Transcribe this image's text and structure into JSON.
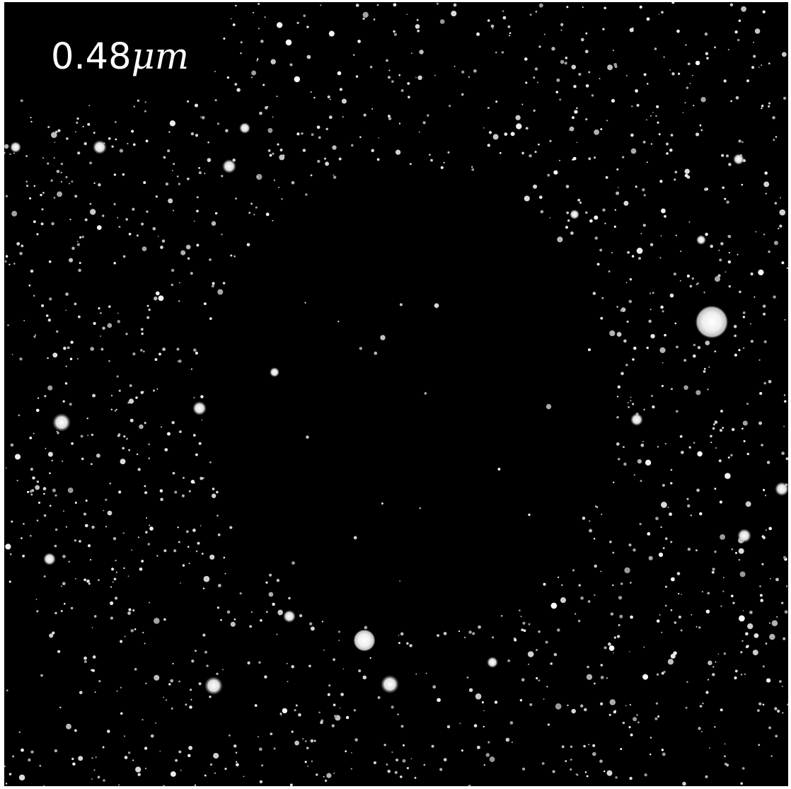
{
  "panel": {
    "wavelength_value": "0.48",
    "wavelength_unit": "μm",
    "background_color": "#000000",
    "star_color": "#ffffff",
    "description_hidden": true
  }
}
